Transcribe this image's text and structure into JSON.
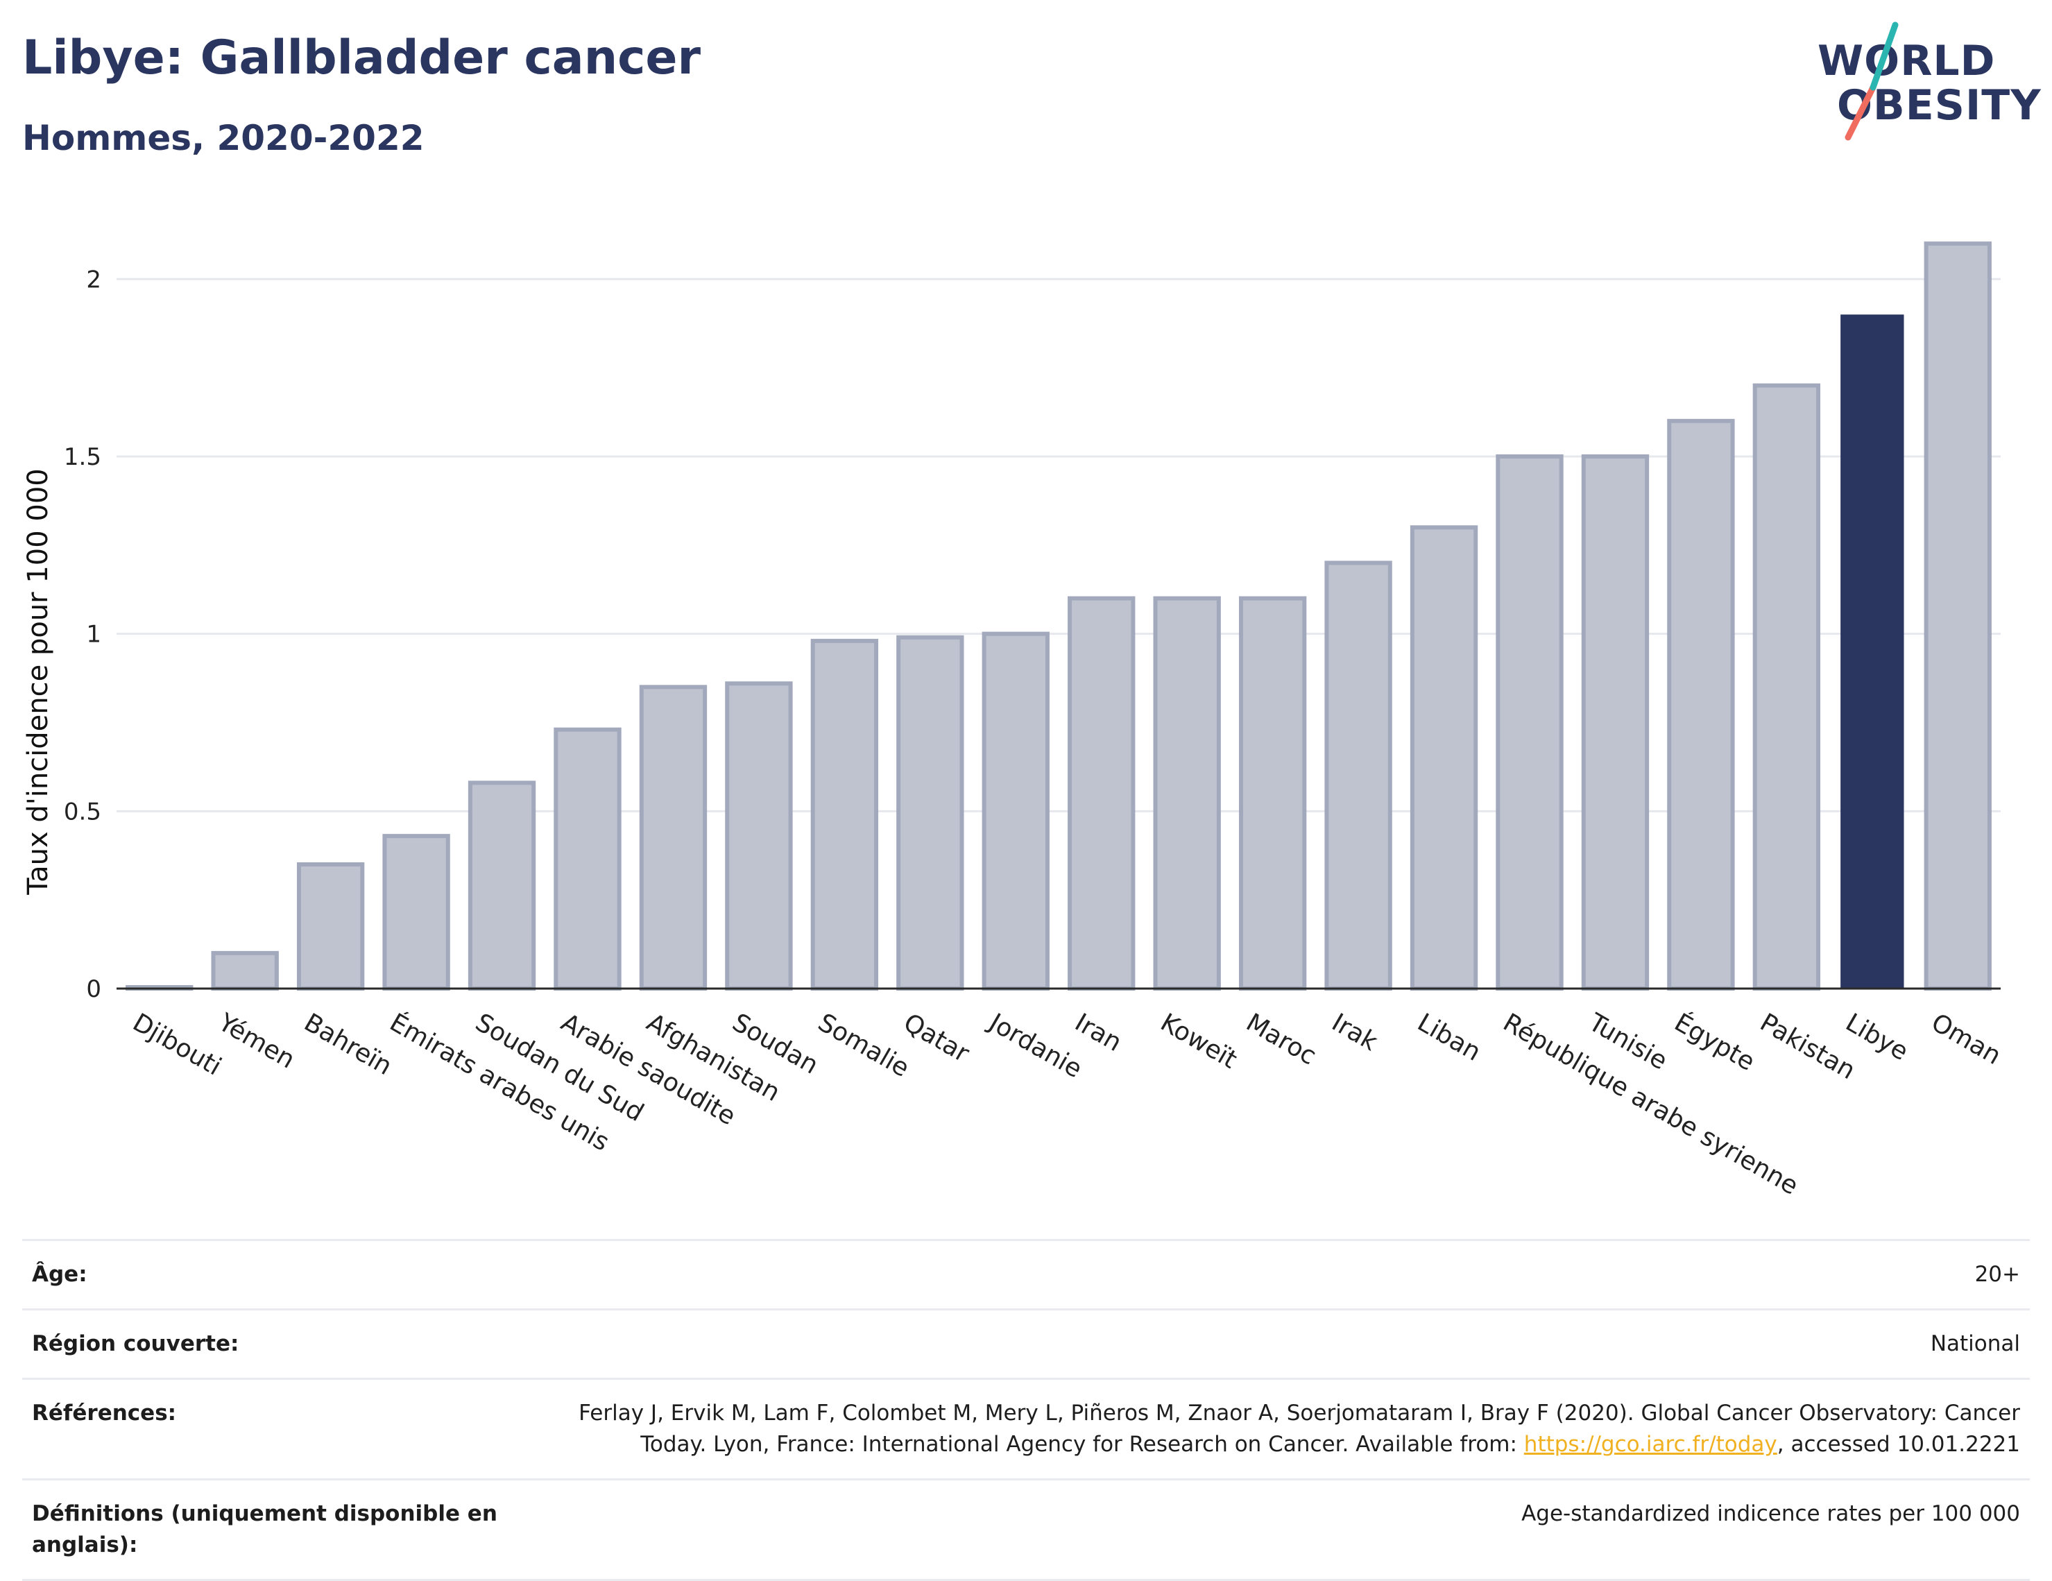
{
  "header": {
    "title": "Libye: Gallbladder cancer",
    "subtitle": "Hommes, 2020-2022"
  },
  "logo": {
    "line1": "WORLD",
    "line2": "OBESITY",
    "colors": {
      "text": "#2a3660",
      "slash_top": "#2ab5b0",
      "slash_bottom": "#f06c5e"
    }
  },
  "chart_data": {
    "type": "bar",
    "title": "Libye: Gallbladder cancer",
    "subtitle": "Hommes, 2020-2022",
    "ylabel": "Taux d'incidence pour 100 000",
    "xlabel": "",
    "ylim": [
      0,
      2.2
    ],
    "yticks": [
      0,
      0.5,
      1,
      1.5,
      2
    ],
    "ytick_labels": [
      "0",
      "0.5",
      "1",
      "1.5",
      "2"
    ],
    "grid": true,
    "categories": [
      "Djibouti",
      "Yémen",
      "Bahreïn",
      "Émirats arabes unis",
      "Soudan du Sud",
      "Arabie saoudite",
      "Afghanistan",
      "Soudan",
      "Somalie",
      "Qatar",
      "Jordanie",
      "Iran",
      "Koweït",
      "Maroc",
      "Irak",
      "Liban",
      "République arabe syrienne",
      "Tunisie",
      "Égypte",
      "Pakistan",
      "Libye",
      "Oman"
    ],
    "values": [
      0.0,
      0.1,
      0.35,
      0.43,
      0.58,
      0.73,
      0.85,
      0.86,
      0.98,
      0.99,
      1.0,
      1.1,
      1.1,
      1.1,
      1.2,
      1.3,
      1.5,
      1.5,
      1.6,
      1.7,
      1.9,
      2.1
    ],
    "highlight": "Libye",
    "colors": {
      "bar": "#bfc3d0",
      "bar_border": "#a3a9bc",
      "highlight": "#2a3660",
      "grid": "#e6e8ee",
      "axis": "#2a2a2a"
    }
  },
  "info": {
    "age_label": "Âge:",
    "age_value": "20+",
    "region_label": "Région couverte:",
    "region_value": "National",
    "references_label": "Références:",
    "references_text": "Ferlay J, Ervik M, Lam F, Colombet M, Mery L, Piñeros M, Znaor A, Soerjomataram I, Bray F (2020). Global Cancer Observatory: Cancer Today. Lyon, France: International Agency for Research on Cancer. Available from: ",
    "references_link": "https://gco.iarc.fr/today",
    "references_suffix": ", accessed 10.01.2221",
    "definitions_label": "Définitions (uniquement disponible en anglais):",
    "definitions_value": "Age-standardized indicence rates per 100 000"
  }
}
